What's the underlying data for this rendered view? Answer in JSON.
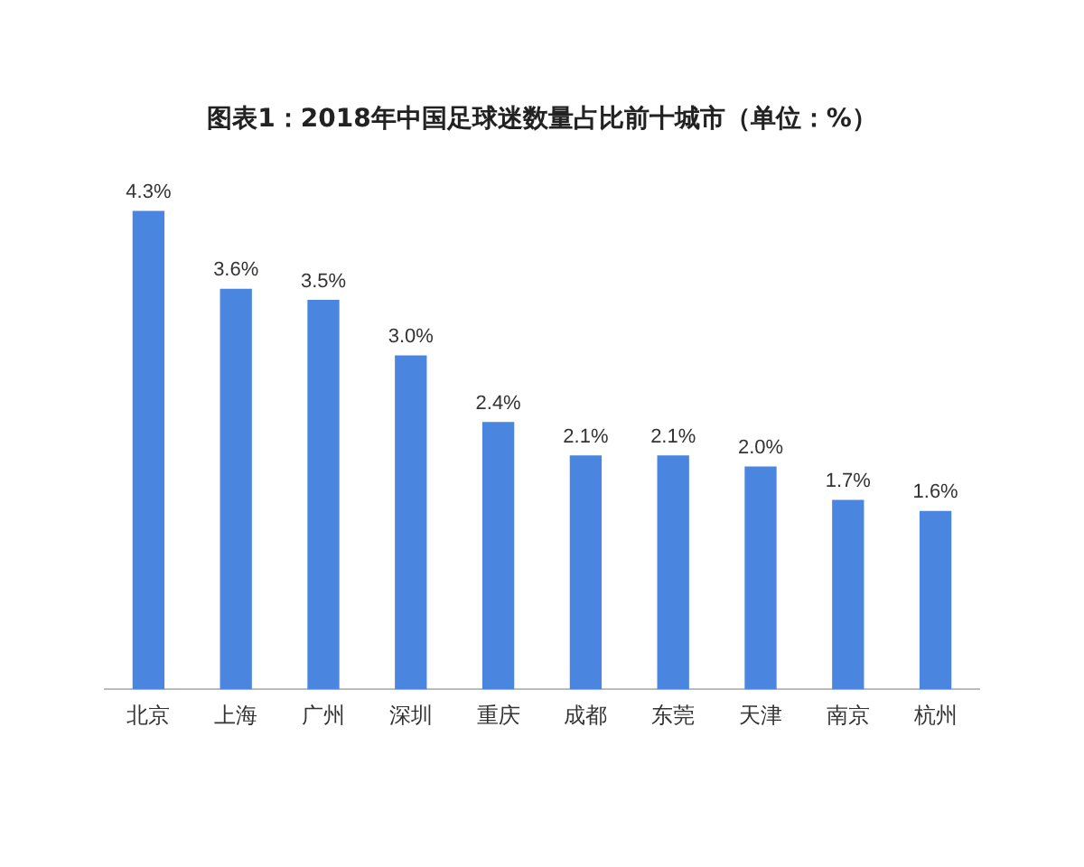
{
  "chart_data": {
    "type": "bar",
    "title": "图表1：2018年中国足球迷数量占比前十城市（单位：%）",
    "categories": [
      "北京",
      "上海",
      "广州",
      "深圳",
      "重庆",
      "成都",
      "东莞",
      "天津",
      "南京",
      "杭州"
    ],
    "values": [
      4.3,
      3.6,
      3.5,
      3.0,
      2.4,
      2.1,
      2.1,
      2.0,
      1.7,
      1.6
    ],
    "value_labels": [
      "4.3%",
      "3.6%",
      "3.5%",
      "3.0%",
      "2.4%",
      "2.1%",
      "2.1%",
      "2.0%",
      "1.7%",
      "1.6%"
    ],
    "color": "#4a86e0",
    "grid": false,
    "legend": false
  }
}
